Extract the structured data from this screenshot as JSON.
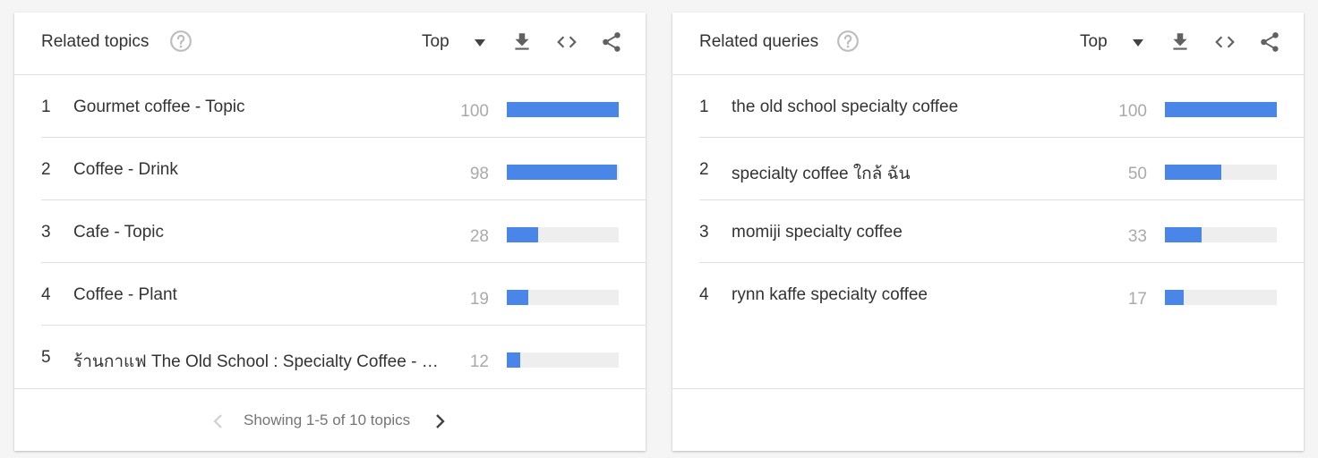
{
  "related_topics": {
    "title": "Related topics",
    "filter": "Top",
    "items": [
      {
        "rank": "1",
        "label": "Gourmet coffee - Topic",
        "value": "100",
        "score": 100
      },
      {
        "rank": "2",
        "label": "Coffee - Drink",
        "value": "98",
        "score": 98
      },
      {
        "rank": "3",
        "label": "Cafe - Topic",
        "value": "28",
        "score": 28
      },
      {
        "rank": "4",
        "label": "Coffee - Plant",
        "value": "19",
        "score": 19
      },
      {
        "rank": "5",
        "label": "ร้านกาแฟ The Old School : Specialty Coffee - Coffee shop",
        "value": "12",
        "score": 12
      }
    ],
    "footer": {
      "text": "Showing 1-5 of 10 topics"
    }
  },
  "related_queries": {
    "title": "Related queries",
    "filter": "Top",
    "items": [
      {
        "rank": "1",
        "label": "the old school specialty coffee",
        "value": "100",
        "score": 100
      },
      {
        "rank": "2",
        "label": "specialty coffee ใกล้ ฉัน",
        "value": "50",
        "score": 50
      },
      {
        "rank": "3",
        "label": "momiji specialty coffee",
        "value": "33",
        "score": 33
      },
      {
        "rank": "4",
        "label": "rynn kaffe specialty coffee",
        "value": "17",
        "score": 17
      }
    ]
  },
  "colors": {
    "bar": "#4a86e8",
    "track": "#eeeeee",
    "icon": "#616161"
  },
  "icons": [
    "help-circle-icon",
    "caret-down-icon",
    "download-icon",
    "embed-code-icon",
    "share-icon",
    "chevron-left-icon",
    "chevron-right-icon"
  ]
}
